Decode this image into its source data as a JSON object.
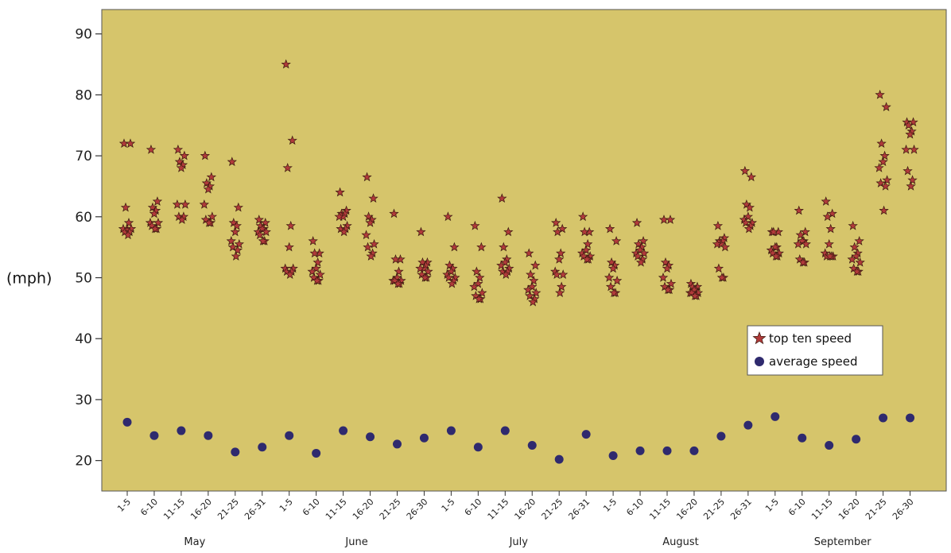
{
  "chart_data": {
    "type": "scatter",
    "ylabel": "(mph)",
    "ylim": [
      15,
      94
    ],
    "yticks": [
      20,
      30,
      40,
      50,
      60,
      70,
      80,
      90
    ],
    "grid": false,
    "legend_position": "center-right",
    "colors": {
      "plot_bg": "#d6c56b",
      "star": "#b13a3a",
      "dot": "#2f2a6e"
    },
    "categories": [
      "1-5",
      "6-10",
      "11-15",
      "16-20",
      "21-25",
      "26-31",
      "1-5",
      "6-10",
      "11-15",
      "16-20",
      "21-25",
      "26-30",
      "1-5",
      "6-10",
      "11-15",
      "16-20",
      "21-25",
      "26-31",
      "1-5",
      "6-10",
      "11-15",
      "16-20",
      "21-25",
      "26-31",
      "1-5",
      "6-10",
      "11-15",
      "16-20",
      "21-25",
      "26-30"
    ],
    "months": [
      {
        "label": "May",
        "start": 0,
        "end": 5
      },
      {
        "label": "June",
        "start": 6,
        "end": 11
      },
      {
        "label": "July",
        "start": 12,
        "end": 17
      },
      {
        "label": "August",
        "start": 18,
        "end": 23
      },
      {
        "label": "September",
        "start": 24,
        "end": 29
      }
    ],
    "series": [
      {
        "name": "top ten speed",
        "marker": "star",
        "values": [
          [
            72,
            72,
            61.5,
            59,
            58,
            58,
            58,
            57.5,
            57.5,
            57
          ],
          [
            71,
            62.5,
            61.5,
            61,
            60.5,
            59,
            59,
            58.5,
            58,
            58
          ],
          [
            71,
            70,
            69,
            68.5,
            68,
            62,
            62,
            60,
            60,
            59.5
          ],
          [
            70,
            66.5,
            65.5,
            65,
            64.5,
            62,
            60,
            59.5,
            59,
            59
          ],
          [
            69,
            61.5,
            59,
            58.5,
            57.5,
            56,
            55.5,
            55,
            54.5,
            53.5
          ],
          [
            59.5,
            59,
            58.5,
            58,
            58,
            57.5,
            57.5,
            57,
            56,
            56
          ],
          [
            85,
            72.5,
            68,
            58.5,
            55,
            51.5,
            51.5,
            51,
            51,
            50.5
          ],
          [
            56,
            54,
            54,
            52.5,
            51.5,
            51,
            50.5,
            50,
            49.5,
            49.5
          ],
          [
            64,
            61,
            60.5,
            60.5,
            60,
            60,
            58.5,
            58,
            58,
            57.5
          ],
          [
            66.5,
            63,
            60,
            59.5,
            59,
            57,
            55.5,
            55,
            54,
            53.5
          ],
          [
            60.5,
            53,
            53,
            51,
            50,
            49.5,
            49.5,
            49.5,
            49,
            49
          ],
          [
            57.5,
            52.5,
            52.5,
            52,
            51.5,
            51.5,
            51,
            50.5,
            50,
            50
          ],
          [
            60,
            55,
            52,
            51.5,
            51,
            50.5,
            50,
            50,
            49.5,
            49
          ],
          [
            58.5,
            55,
            51,
            50,
            49,
            48.5,
            47.5,
            47,
            46.5,
            46.5
          ],
          [
            63,
            57.5,
            55,
            53,
            52.5,
            52,
            51.5,
            51,
            51,
            50.5
          ],
          [
            54,
            52,
            50.5,
            49.5,
            48.5,
            48,
            47.5,
            47,
            46.5,
            46
          ],
          [
            59,
            58,
            57.5,
            54,
            53,
            51,
            50.5,
            50.5,
            48.5,
            47.5
          ],
          [
            60,
            57.5,
            57.5,
            55.5,
            54.5,
            54,
            53.5,
            53.5,
            53,
            53
          ],
          [
            58,
            56,
            52.5,
            52,
            51.5,
            50,
            49.5,
            48.5,
            47.5,
            47.5
          ],
          [
            59,
            56,
            55.5,
            55,
            54.5,
            54,
            54,
            53.5,
            53,
            52.5
          ],
          [
            59.5,
            59.5,
            52.5,
            52,
            51.5,
            50,
            49,
            48.5,
            48,
            48
          ],
          [
            49,
            48.5,
            48.5,
            48,
            48,
            47.5,
            47.5,
            47.5,
            47,
            47
          ],
          [
            58.5,
            56.5,
            56,
            56,
            55.5,
            55.5,
            55,
            51.5,
            50,
            50
          ],
          [
            67.5,
            66.5,
            62,
            61.5,
            60,
            59.5,
            59,
            59,
            58.5,
            58
          ],
          [
            57.5,
            57.5,
            57.5,
            55,
            55,
            54.5,
            54,
            54,
            53.5,
            53.5
          ],
          [
            61,
            57.5,
            57,
            56,
            56,
            55.5,
            55.5,
            53,
            52.5,
            52.5
          ],
          [
            62.5,
            60.5,
            60,
            58,
            55.5,
            54,
            53.5,
            53.5,
            53.5,
            53.5
          ],
          [
            58.5,
            56,
            55,
            54,
            53.5,
            53,
            52.5,
            51.5,
            51,
            51
          ],
          [
            80,
            78,
            72,
            70,
            69,
            68,
            66,
            65.5,
            65,
            61
          ],
          [
            75.5,
            75.5,
            75,
            74,
            73.5,
            71,
            71,
            67.5,
            66,
            65
          ]
        ]
      },
      {
        "name": "average speed",
        "marker": "circle",
        "values": [
          26.3,
          24.1,
          24.9,
          24.1,
          21.4,
          22.2,
          24.1,
          21.2,
          24.9,
          23.9,
          22.7,
          23.7,
          24.9,
          22.2,
          24.9,
          22.5,
          20.2,
          24.3,
          20.8,
          21.6,
          21.6,
          21.6,
          24,
          25.8,
          27.2,
          23.7,
          22.5,
          23.5,
          27,
          27
        ]
      }
    ]
  }
}
